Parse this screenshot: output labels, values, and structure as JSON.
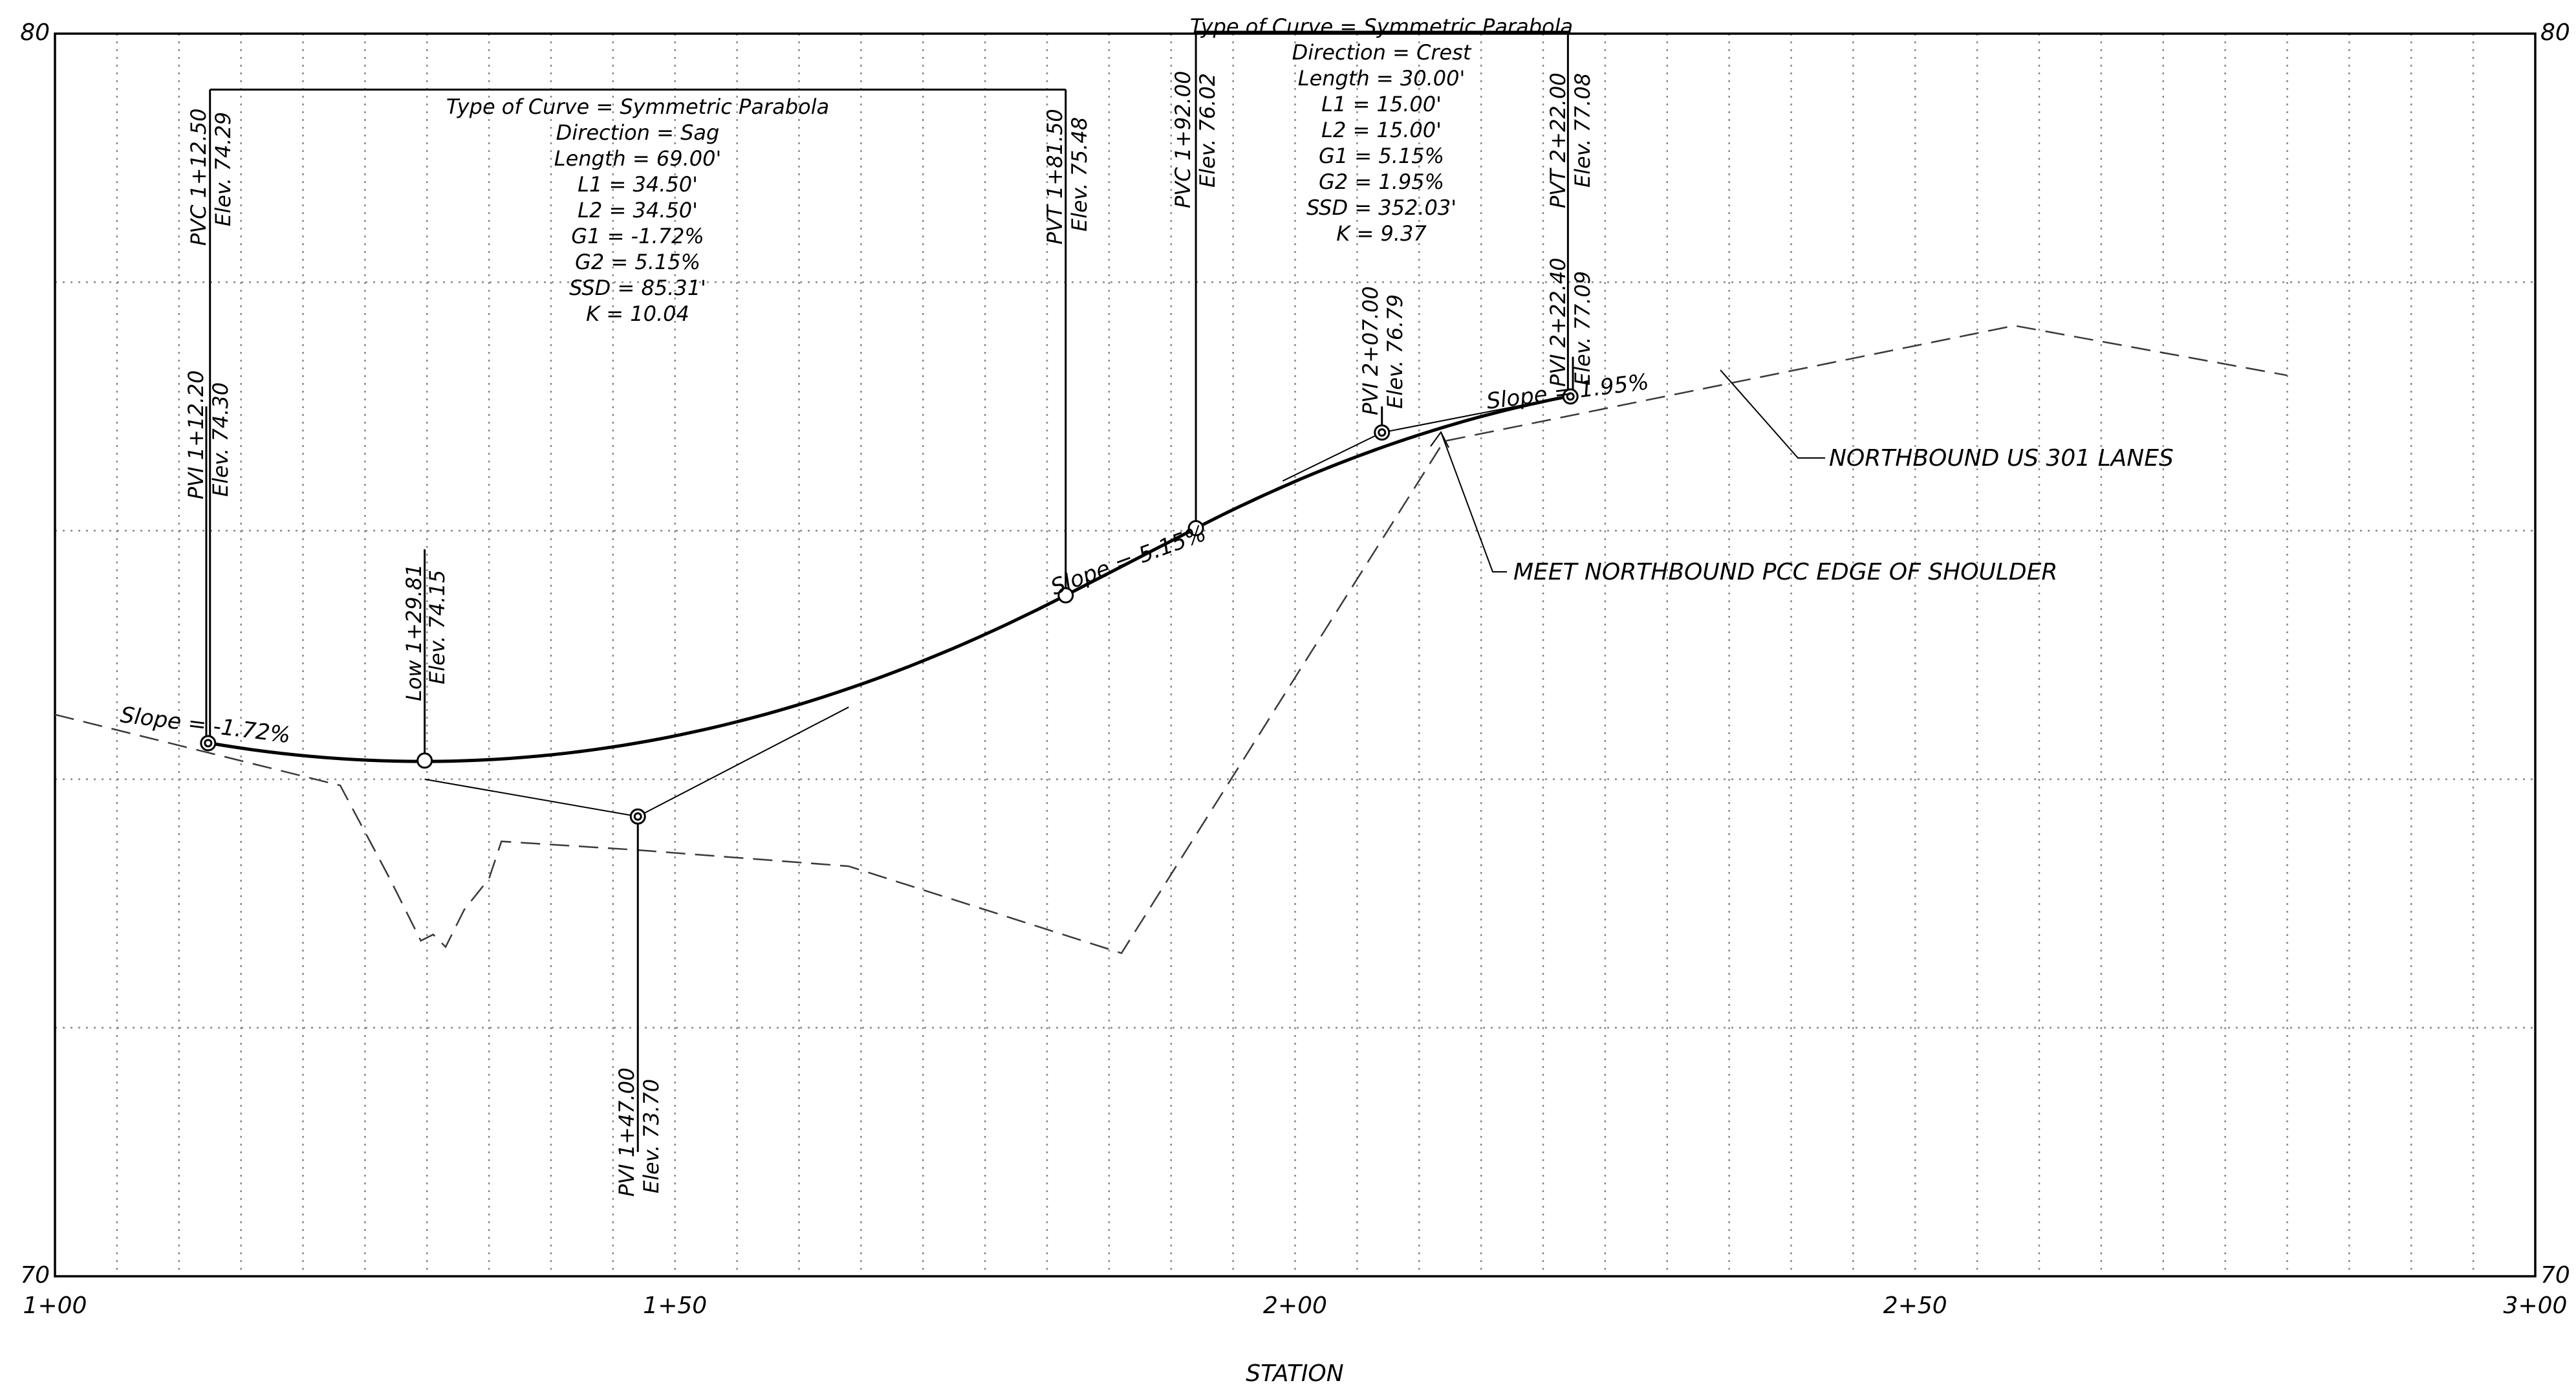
{
  "axes": {
    "x_label": "STATION",
    "x_ticks": [
      {
        "sta": 100,
        "label": "1+00"
      },
      {
        "sta": 150,
        "label": "1+50"
      },
      {
        "sta": 200,
        "label": "2+00"
      },
      {
        "sta": 250,
        "label": "2+50"
      },
      {
        "sta": 300,
        "label": "3+00"
      }
    ],
    "y_ticks_left": [
      {
        "elev": 80,
        "label": "80"
      },
      {
        "elev": 70,
        "label": "70"
      }
    ],
    "y_ticks_right": [
      {
        "elev": 80,
        "label": "80"
      },
      {
        "elev": 70,
        "label": "70"
      }
    ],
    "xlim": [
      100,
      300
    ],
    "ylim": [
      70,
      80
    ],
    "x_grid_step": 5,
    "y_grid_step": 2
  },
  "design_profile": {
    "pvi": [
      {
        "sta": 112.2,
        "elev": 74.3
      },
      {
        "sta": 147.0,
        "elev": 73.7
      },
      {
        "sta": 207.0,
        "elev": 76.79
      },
      {
        "sta": 222.4,
        "elev": 77.09
      }
    ],
    "curves": [
      {
        "pvc_sta": 112.5,
        "pvc_elev": 74.29,
        "pvi_sta": 147.0,
        "pvi_elev": 73.7,
        "pvt_sta": 181.5,
        "pvt_elev": 75.48
      },
      {
        "pvc_sta": 192.0,
        "pvc_elev": 76.02,
        "pvi_sta": 207.0,
        "pvi_elev": 76.79,
        "pvt_sta": 222.0,
        "pvt_elev": 77.08
      }
    ],
    "low_point": {
      "sta": 129.81,
      "elev": 74.15
    },
    "pre_slope_start": {
      "sta": 112.2,
      "elev": 74.3
    },
    "tangent_end": {
      "sta": 222.4,
      "elev": 77.09
    }
  },
  "ground_profile": {
    "style": "dashed",
    "points": [
      {
        "sta": 100.0,
        "elev": 74.52
      },
      {
        "sta": 123.0,
        "elev": 73.95
      },
      {
        "sta": 127.0,
        "elev": 73.2
      },
      {
        "sta": 129.5,
        "elev": 72.7
      },
      {
        "sta": 130.5,
        "elev": 72.75
      },
      {
        "sta": 131.5,
        "elev": 72.65
      },
      {
        "sta": 133.0,
        "elev": 72.95
      },
      {
        "sta": 135.0,
        "elev": 73.2
      },
      {
        "sta": 136.0,
        "elev": 73.5
      },
      {
        "sta": 147.0,
        "elev": 73.43
      },
      {
        "sta": 164.0,
        "elev": 73.3
      },
      {
        "sta": 186.0,
        "elev": 72.6
      },
      {
        "sta": 212.0,
        "elev": 76.72
      },
      {
        "sta": 258.0,
        "elev": 77.65
      },
      {
        "sta": 280.0,
        "elev": 77.25
      }
    ]
  },
  "slopes": [
    {
      "id": "slope-1",
      "text": "Slope = -1.72%"
    },
    {
      "id": "slope-2",
      "text": "Slope = 5.15%"
    },
    {
      "id": "slope-3",
      "text": "Slope = 1.95%"
    }
  ],
  "callouts": {
    "pvc1": {
      "station": "PVC 1+12.50",
      "elev": "Elev. 74.29"
    },
    "pvi1": {
      "station": "PVI 1+12.20",
      "elev": "Elev. 74.30"
    },
    "low": {
      "station": "Low 1+29.81",
      "elev": "Elev. 74.15"
    },
    "pvi2": {
      "station": "PVI 1+47.00",
      "elev": "Elev. 73.70"
    },
    "pvt1": {
      "station": "PVT 1+81.50",
      "elev": "Elev. 75.48"
    },
    "pvc2": {
      "station": "PVC 1+92.00",
      "elev": "Elev. 76.02"
    },
    "pvi3": {
      "station": "PVI 2+07.00",
      "elev": "Elev. 76.79"
    },
    "pvt2": {
      "station": "PVT 2+22.00",
      "elev": "Elev. 77.08"
    },
    "pvi4": {
      "station": "PVI 2+22.40",
      "elev": "Elev. 77.09"
    }
  },
  "curve_data": {
    "sag": [
      "Type of Curve = Symmetric Parabola",
      "Direction = Sag",
      "Length = 69.00'",
      "L1 = 34.50'",
      "L2 = 34.50'",
      "G1 = -1.72%",
      "G2 = 5.15%",
      "SSD = 85.31'",
      "K = 10.04"
    ],
    "crest": [
      "Type of Curve = Symmetric Parabola",
      "Direction = Crest",
      "Length = 30.00'",
      "L1 = 15.00'",
      "L2 = 15.00'",
      "G1 = 5.15%",
      "G2 = 1.95%",
      "SSD = 352.03'",
      "K = 9.37"
    ]
  },
  "annotations": {
    "northbound": "NORTHBOUND US 301 LANES",
    "shoulder": "MEET NORTHBOUND PCC EDGE OF SHOULDER"
  }
}
